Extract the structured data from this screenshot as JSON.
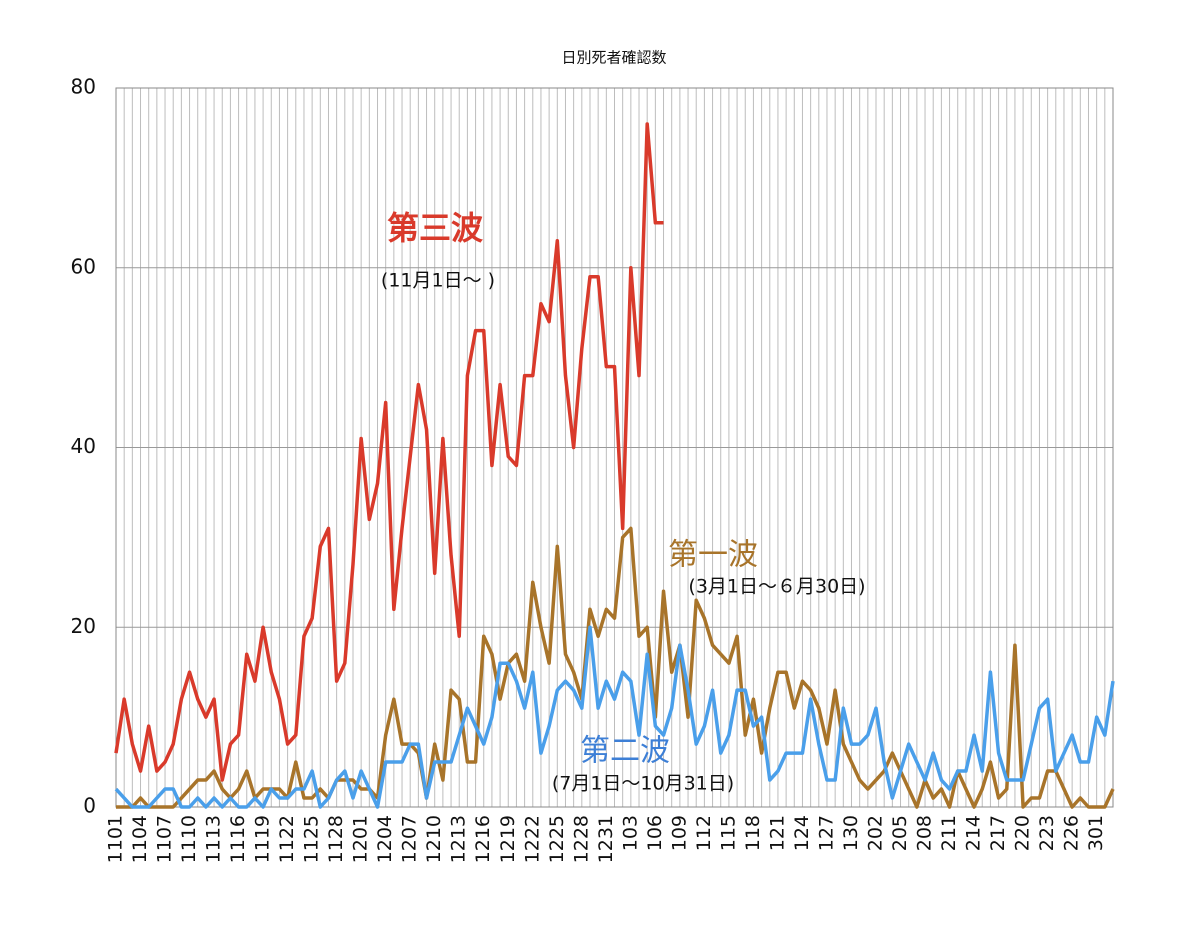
{
  "chart_data": {
    "type": "line",
    "title": "日別死者確認数",
    "categories": [
      "1101",
      null,
      null,
      "1104",
      null,
      null,
      "1107",
      null,
      null,
      "1110",
      null,
      null,
      "1113",
      null,
      null,
      "1116",
      null,
      null,
      "1119",
      null,
      null,
      "1122",
      null,
      null,
      "1125",
      null,
      null,
      "1128",
      null,
      null,
      "1201",
      null,
      null,
      "1204",
      null,
      null,
      "1207",
      null,
      null,
      "1210",
      null,
      null,
      "1213",
      null,
      null,
      "1216",
      null,
      null,
      "1219",
      null,
      null,
      "1222",
      null,
      null,
      "1225",
      null,
      null,
      "1228",
      null,
      null,
      "1231",
      null,
      null,
      "103",
      null,
      null,
      "106",
      null,
      null,
      "109",
      null,
      null,
      "112",
      null,
      null,
      "115",
      null,
      null,
      "118",
      null,
      null,
      "121",
      null,
      null,
      "124",
      null,
      null,
      "127",
      null,
      null,
      "130",
      null,
      null,
      "202",
      null,
      null,
      "205",
      null,
      null,
      "208",
      null,
      null,
      "211",
      null,
      null,
      "214",
      null,
      null,
      "217",
      null,
      null,
      "220",
      null,
      null,
      "223",
      null,
      null,
      "226",
      null,
      null,
      "301",
      null,
      null
    ],
    "series": [
      {
        "name": "第一波",
        "color": "#a8742a",
        "values": [
          0,
          0,
          0,
          1,
          0,
          0,
          0,
          0,
          1,
          2,
          3,
          3,
          4,
          2,
          1,
          2,
          4,
          1,
          2,
          2,
          2,
          1,
          5,
          1,
          1,
          2,
          1,
          3,
          3,
          3,
          2,
          2,
          1,
          8,
          12,
          7,
          7,
          6,
          1,
          7,
          3,
          13,
          12,
          5,
          5,
          19,
          17,
          12,
          16,
          17,
          14,
          25,
          20,
          16,
          29,
          17,
          15,
          12,
          22,
          19,
          22,
          21,
          30,
          31,
          19,
          20,
          10,
          24,
          15,
          18,
          10,
          23,
          21,
          18,
          17,
          16,
          19,
          8,
          12,
          6,
          11,
          15,
          15,
          11,
          14,
          13,
          11,
          7,
          13,
          7,
          5,
          3,
          2,
          3,
          4,
          6,
          4,
          2,
          0,
          3,
          1,
          2,
          0,
          4,
          2,
          0,
          2,
          5,
          1,
          2,
          18,
          0,
          1,
          1,
          4,
          4,
          2,
          0,
          1,
          0,
          0,
          0,
          2
        ]
      },
      {
        "name": "第二波",
        "color": "#4a9fea",
        "values": [
          2,
          1,
          0,
          0,
          0,
          1,
          2,
          2,
          0,
          0,
          1,
          0,
          1,
          0,
          1,
          0,
          0,
          1,
          0,
          2,
          1,
          1,
          2,
          2,
          4,
          0,
          1,
          3,
          4,
          1,
          4,
          2,
          0,
          5,
          5,
          5,
          7,
          7,
          1,
          5,
          5,
          5,
          8,
          11,
          9,
          7,
          10,
          16,
          16,
          14,
          11,
          15,
          6,
          9,
          13,
          14,
          13,
          11,
          20,
          11,
          14,
          12,
          15,
          14,
          8,
          17,
          9,
          8,
          11,
          18,
          13,
          7,
          9,
          13,
          6,
          8,
          13,
          13,
          9,
          10,
          3,
          4,
          6,
          6,
          6,
          12,
          7,
          3,
          3,
          11,
          7,
          7,
          8,
          11,
          5,
          1,
          4,
          7,
          5,
          3,
          6,
          3,
          2,
          4,
          4,
          8,
          4,
          15,
          6,
          3,
          3,
          3,
          7,
          11,
          12,
          4,
          6,
          8,
          5,
          5,
          10,
          8,
          14
        ]
      },
      {
        "name": "第三波",
        "color": "#d93a2b",
        "values": [
          6,
          12,
          7,
          4,
          9,
          4,
          5,
          7,
          12,
          15,
          12,
          10,
          12,
          3,
          7,
          8,
          17,
          14,
          20,
          15,
          12,
          7,
          8,
          19,
          21,
          29,
          31,
          14,
          16,
          27,
          41,
          32,
          36,
          45,
          22,
          31,
          39,
          47,
          42,
          26,
          41,
          28,
          19,
          48,
          53,
          53,
          38,
          47,
          39,
          38,
          48,
          48,
          56,
          54,
          63,
          48,
          40,
          51,
          59,
          59,
          49,
          49,
          31,
          60,
          48,
          76,
          65,
          65,
          null,
          null,
          null,
          null,
          null,
          null,
          null,
          null,
          null,
          null,
          null,
          null,
          null,
          null,
          null,
          null,
          null,
          null,
          null,
          null,
          null,
          null,
          null,
          null,
          null,
          null,
          null,
          null,
          null,
          null,
          null,
          null,
          null,
          null,
          null,
          null,
          null,
          null,
          null,
          null,
          null,
          null,
          null,
          null,
          null,
          null,
          null,
          null,
          null,
          null,
          null,
          null,
          null,
          null,
          null
        ]
      }
    ],
    "annotations": [
      "(3月1日〜６月30日)",
      "(7月1日〜10月31日)",
      "(11月1日〜 )"
    ],
    "ylim": [
      0,
      80
    ],
    "yticks": [
      0,
      20,
      40,
      60,
      80
    ],
    "grid": true
  }
}
